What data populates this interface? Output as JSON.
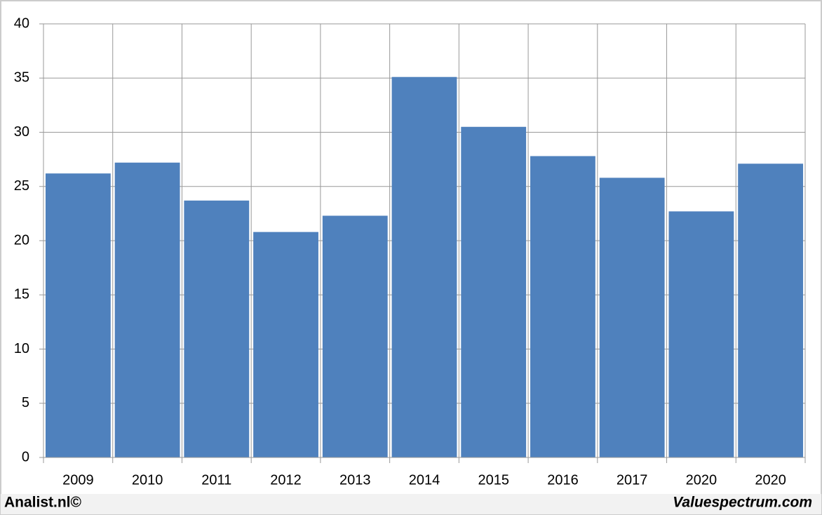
{
  "chart_data": {
    "type": "bar",
    "categories": [
      "2009",
      "2010",
      "2011",
      "2012",
      "2013",
      "2014",
      "2015",
      "2016",
      "2017",
      "2020",
      "2020"
    ],
    "values": [
      26.2,
      27.2,
      23.7,
      20.8,
      22.3,
      35.1,
      30.5,
      27.8,
      25.8,
      22.7,
      27.1
    ],
    "color": "#4f81bd",
    "ylim": [
      0,
      40
    ],
    "yticks": [
      0,
      5,
      10,
      15,
      20,
      25,
      30,
      35,
      40
    ],
    "grid": true
  },
  "footer": {
    "left": "Analist.nl©",
    "right": "Valuespectrum.com"
  }
}
